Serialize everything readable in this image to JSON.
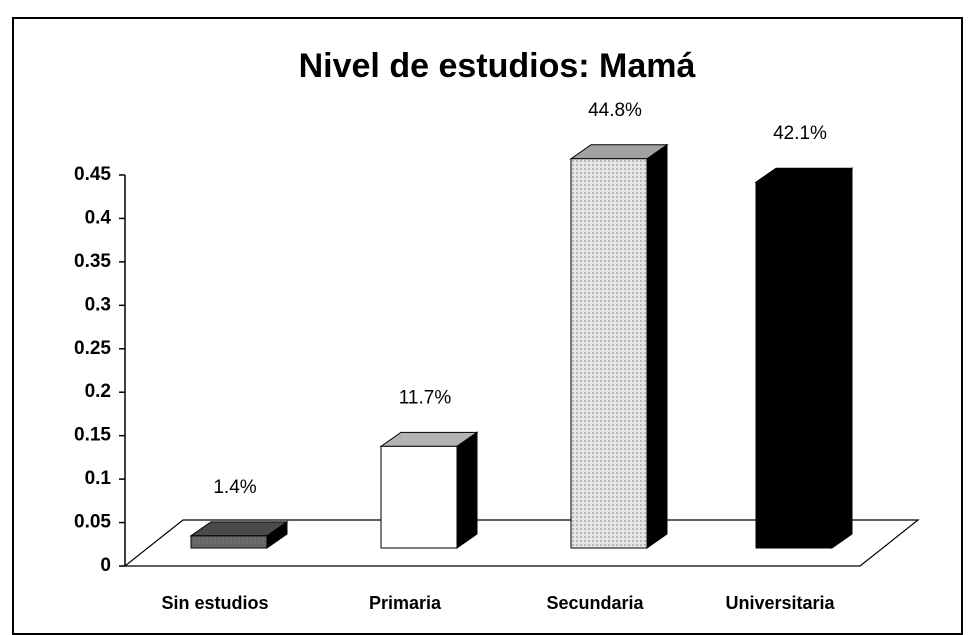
{
  "chart_data": {
    "type": "bar3d",
    "title": "Nivel de estudios: Mamá",
    "categories": [
      "Sin estudios",
      "Primaria",
      "Secundaria",
      "Universitaria"
    ],
    "values": [
      0.014,
      0.117,
      0.448,
      0.421
    ],
    "value_labels": [
      "1.4%",
      "11.7%",
      "44.8%",
      "42.1%"
    ],
    "colors": [
      "#6a6a6a",
      "#ffffff",
      "#e6e6e6",
      "#000000"
    ],
    "ylim": [
      0,
      0.45
    ],
    "yticks": [
      0,
      0.05,
      0.1,
      0.15,
      0.2,
      0.25,
      0.3,
      0.35,
      0.4,
      0.45
    ]
  }
}
